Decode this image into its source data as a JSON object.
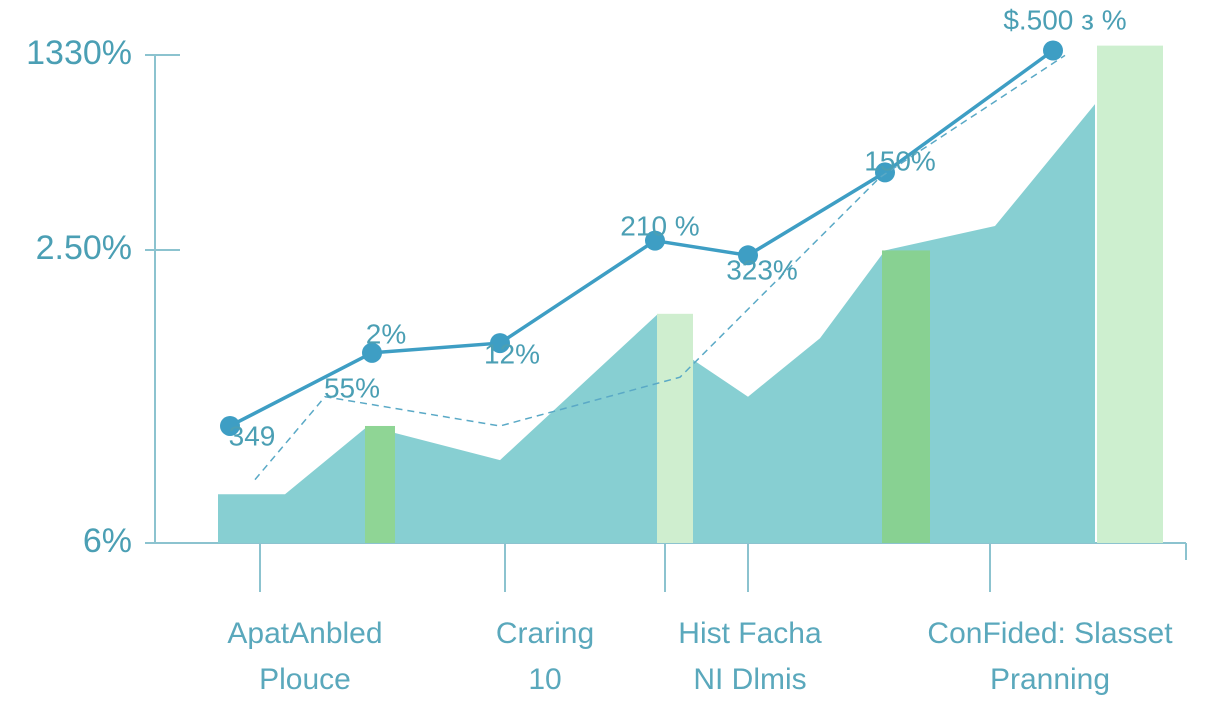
{
  "chart_data": {
    "type": "combo",
    "ylim": [
      0,
      105
    ],
    "y_labels": [
      "1330%",
      "2.50%",
      "6%"
    ],
    "x_labels": [
      [
        "ApatAnbled",
        "Plouce"
      ],
      [
        "Craring",
        "10"
      ],
      [
        "Hist Facha",
        "NI Dlmis"
      ],
      [
        "ConFided: Slasset",
        "Pranning"
      ]
    ],
    "area": {
      "color": "#87cfd2",
      "values": [
        10,
        10,
        24,
        17,
        47,
        38,
        30,
        42,
        60,
        65,
        90
      ]
    },
    "bars": {
      "colors": [
        "#8fd595",
        "#cfeecf",
        "#88d192",
        "#cdefcf"
      ],
      "values": [
        24,
        47,
        60,
        102
      ]
    },
    "series": [
      {
        "color": "#3e9ec4",
        "values": [
          24,
          39,
          41,
          62,
          59,
          76,
          101
        ]
      },
      {
        "color": "#5aa9c6",
        "style": "dashed",
        "values": [
          13,
          30,
          24,
          34,
          75,
          100
        ]
      }
    ],
    "annotations": [
      "$.500 з %",
      "150%",
      "210 %",
      "323%",
      "12%",
      "2%",
      "55%",
      "349"
    ]
  }
}
